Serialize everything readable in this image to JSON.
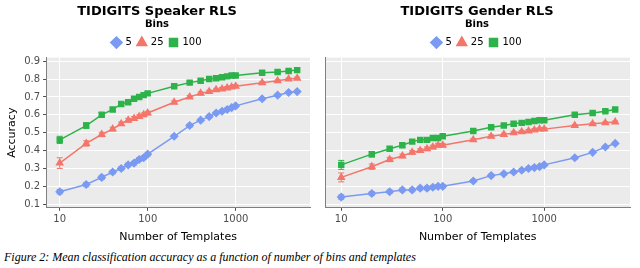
{
  "caption": "Figure 2: Mean classification accuracy as a function of number of bins and templates",
  "chart_data": [
    {
      "type": "line",
      "title": "TIDIGITS Speaker RLS",
      "x_label": "Number of Templates",
      "y_label": "Accuracy",
      "legend": "top",
      "legend_title": "Bins",
      "log": "x",
      "grid": true,
      "x": [
        10,
        20,
        30,
        40,
        50,
        60,
        70,
        80,
        90,
        100,
        200,
        300,
        400,
        500,
        600,
        700,
        800,
        900,
        1000,
        2000,
        3000,
        4000,
        5000
      ],
      "xlim": [
        7,
        7000
      ],
      "xticks": [
        10,
        100,
        1000
      ],
      "ylim": [
        0.08,
        0.92
      ],
      "yticks": [
        0.1,
        0.2,
        0.3,
        0.4,
        0.5,
        0.6,
        0.7,
        0.8,
        0.9
      ],
      "series": [
        {
          "name": "5",
          "color": "#7b9af2",
          "marker": "diamond",
          "values": [
            0.17,
            0.21,
            0.25,
            0.28,
            0.3,
            0.32,
            0.33,
            0.35,
            0.36,
            0.38,
            0.48,
            0.54,
            0.57,
            0.59,
            0.61,
            0.62,
            0.63,
            0.64,
            0.65,
            0.69,
            0.71,
            0.725,
            0.73
          ],
          "errors": [
            0.012,
            0.012,
            0.012,
            0.01,
            0.01,
            0.01,
            0.01,
            0.01,
            0.01,
            0.01,
            0.008,
            0.008,
            0.008,
            0.008,
            0.008,
            0.008,
            0.008,
            0.008,
            0.008,
            0.006,
            0.006,
            0.006,
            0.006
          ]
        },
        {
          "name": "25",
          "color": "#f4766b",
          "marker": "triangle",
          "values": [
            0.33,
            0.44,
            0.49,
            0.52,
            0.55,
            0.57,
            0.58,
            0.59,
            0.6,
            0.61,
            0.67,
            0.7,
            0.72,
            0.73,
            0.74,
            0.745,
            0.75,
            0.755,
            0.76,
            0.78,
            0.79,
            0.8,
            0.805
          ],
          "errors": [
            0.03,
            0.015,
            0.012,
            0.01,
            0.01,
            0.01,
            0.01,
            0.01,
            0.01,
            0.01,
            0.008,
            0.008,
            0.008,
            0.008,
            0.008,
            0.008,
            0.008,
            0.008,
            0.008,
            0.006,
            0.006,
            0.006,
            0.006
          ]
        },
        {
          "name": "100",
          "color": "#2db34a",
          "marker": "square",
          "values": [
            0.46,
            0.54,
            0.6,
            0.63,
            0.66,
            0.67,
            0.69,
            0.7,
            0.71,
            0.72,
            0.76,
            0.78,
            0.79,
            0.8,
            0.805,
            0.81,
            0.815,
            0.82,
            0.82,
            0.835,
            0.84,
            0.845,
            0.85
          ],
          "errors": [
            0.02,
            0.015,
            0.012,
            0.01,
            0.01,
            0.01,
            0.01,
            0.01,
            0.01,
            0.01,
            0.008,
            0.008,
            0.008,
            0.008,
            0.008,
            0.008,
            0.008,
            0.008,
            0.008,
            0.006,
            0.006,
            0.006,
            0.006
          ]
        }
      ]
    },
    {
      "type": "line",
      "title": "TIDIGITS Gender RLS",
      "x_label": "Number of Templates",
      "legend": "top",
      "legend_title": "Bins",
      "log": "x",
      "grid": true,
      "tick_labels": "x",
      "x": [
        10,
        20,
        30,
        40,
        50,
        60,
        70,
        80,
        90,
        100,
        200,
        300,
        400,
        500,
        600,
        700,
        800,
        900,
        1000,
        2000,
        3000,
        4000,
        5000
      ],
      "xlim": [
        7,
        7000
      ],
      "xticks": [
        10,
        100,
        1000
      ],
      "ylim": [
        0.08,
        0.92
      ],
      "yticks": [
        0.1,
        0.2,
        0.3,
        0.4,
        0.5,
        0.6,
        0.7,
        0.8,
        0.9
      ],
      "series": [
        {
          "name": "5",
          "color": "#7b9af2",
          "marker": "diamond",
          "values": [
            0.14,
            0.16,
            0.17,
            0.18,
            0.18,
            0.19,
            0.19,
            0.195,
            0.2,
            0.2,
            0.23,
            0.26,
            0.27,
            0.28,
            0.29,
            0.3,
            0.305,
            0.31,
            0.32,
            0.36,
            0.39,
            0.42,
            0.44
          ],
          "errors": [
            0.012,
            0.01,
            0.01,
            0.01,
            0.01,
            0.01,
            0.01,
            0.01,
            0.01,
            0.01,
            0.008,
            0.008,
            0.008,
            0.008,
            0.008,
            0.008,
            0.008,
            0.008,
            0.008,
            0.006,
            0.006,
            0.006,
            0.006
          ]
        },
        {
          "name": "25",
          "color": "#f4766b",
          "marker": "triangle",
          "values": [
            0.25,
            0.31,
            0.35,
            0.37,
            0.39,
            0.4,
            0.41,
            0.42,
            0.43,
            0.43,
            0.46,
            0.48,
            0.49,
            0.5,
            0.505,
            0.51,
            0.515,
            0.52,
            0.52,
            0.54,
            0.55,
            0.555,
            0.56
          ],
          "errors": [
            0.025,
            0.015,
            0.012,
            0.01,
            0.01,
            0.01,
            0.01,
            0.01,
            0.01,
            0.01,
            0.008,
            0.008,
            0.008,
            0.008,
            0.008,
            0.008,
            0.008,
            0.008,
            0.008,
            0.006,
            0.006,
            0.006,
            0.006
          ]
        },
        {
          "name": "100",
          "color": "#2db34a",
          "marker": "square",
          "values": [
            0.32,
            0.38,
            0.41,
            0.43,
            0.45,
            0.46,
            0.46,
            0.47,
            0.47,
            0.48,
            0.51,
            0.53,
            0.54,
            0.55,
            0.555,
            0.56,
            0.565,
            0.57,
            0.57,
            0.6,
            0.61,
            0.62,
            0.63
          ],
          "errors": [
            0.025,
            0.015,
            0.012,
            0.01,
            0.01,
            0.01,
            0.01,
            0.01,
            0.01,
            0.01,
            0.008,
            0.008,
            0.008,
            0.008,
            0.008,
            0.008,
            0.008,
            0.008,
            0.008,
            0.006,
            0.006,
            0.006,
            0.006
          ]
        }
      ]
    }
  ]
}
